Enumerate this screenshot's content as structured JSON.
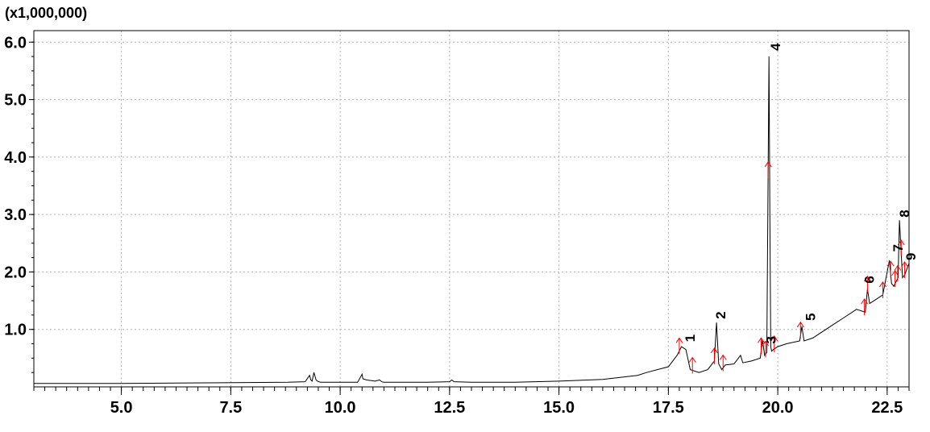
{
  "chart_data": {
    "type": "line",
    "y_multiplier_label": "(x1,000,000)",
    "xlim": [
      3.0,
      23.0
    ],
    "ylim": [
      0,
      6.2
    ],
    "x_ticks": [
      {
        "value": 5.0,
        "label": "5.0"
      },
      {
        "value": 7.5,
        "label": "7.5"
      },
      {
        "value": 10.0,
        "label": "10.0"
      },
      {
        "value": 12.5,
        "label": "12.5"
      },
      {
        "value": 15.0,
        "label": "15.0"
      },
      {
        "value": 17.5,
        "label": "17.5"
      },
      {
        "value": 20.0,
        "label": "20.0"
      },
      {
        "value": 22.5,
        "label": "22.5"
      }
    ],
    "y_ticks": [
      {
        "value": 1.0,
        "label": "1.0"
      },
      {
        "value": 2.0,
        "label": "2.0"
      },
      {
        "value": 3.0,
        "label": "3.0"
      },
      {
        "value": 4.0,
        "label": "4.0"
      },
      {
        "value": 5.0,
        "label": "5.0"
      },
      {
        "value": 6.0,
        "label": "6.0"
      }
    ],
    "grid": true,
    "series": [
      {
        "x": [
          3.0,
          5.0,
          7.0,
          8.8,
          9.2,
          9.3,
          9.33,
          9.36,
          9.4,
          9.45,
          9.48,
          9.55,
          9.7,
          10.4,
          10.5,
          10.52,
          10.6,
          10.8,
          10.9,
          10.95,
          11.0,
          12.0,
          12.5,
          12.55,
          12.6,
          13.0,
          14.0,
          15.0,
          16.0,
          16.8,
          17.0,
          17.5,
          17.7,
          17.8,
          17.9,
          18.0,
          18.2,
          18.4,
          18.55,
          18.6,
          18.65,
          18.72,
          18.8,
          19.0,
          19.1,
          19.15,
          19.2,
          19.4,
          19.6,
          19.65,
          19.7,
          19.75,
          19.8,
          19.82,
          19.84,
          19.86,
          19.9,
          20.0,
          20.2,
          20.5,
          20.55,
          20.6,
          20.8,
          21.0,
          21.2,
          21.5,
          21.8,
          22.0,
          22.05,
          22.1,
          22.2,
          22.4,
          22.55,
          22.6,
          22.65,
          22.75,
          22.78,
          22.85,
          22.9,
          23.0
        ],
        "y": [
          0.06,
          0.06,
          0.07,
          0.08,
          0.09,
          0.2,
          0.12,
          0.1,
          0.25,
          0.12,
          0.1,
          0.08,
          0.08,
          0.08,
          0.22,
          0.14,
          0.12,
          0.1,
          0.12,
          0.09,
          0.08,
          0.08,
          0.09,
          0.12,
          0.09,
          0.08,
          0.08,
          0.1,
          0.13,
          0.2,
          0.25,
          0.35,
          0.55,
          0.7,
          0.65,
          0.3,
          0.25,
          0.3,
          0.45,
          1.12,
          0.4,
          0.3,
          0.38,
          0.4,
          0.5,
          0.55,
          0.42,
          0.45,
          0.5,
          0.82,
          0.55,
          0.6,
          5.75,
          3.0,
          0.7,
          0.62,
          0.65,
          0.7,
          0.75,
          0.8,
          1.05,
          0.8,
          0.85,
          0.95,
          1.05,
          1.2,
          1.35,
          1.3,
          1.7,
          1.45,
          1.5,
          1.6,
          2.2,
          1.8,
          1.75,
          1.9,
          2.9,
          1.9,
          1.95,
          2.15
        ]
      }
    ],
    "peak_labels": [
      {
        "label": "1",
        "x": 18.1,
        "y": 0.78
      },
      {
        "label": "2",
        "x": 18.8,
        "y": 1.18
      },
      {
        "label": "3",
        "x": 19.95,
        "y": 0.75
      },
      {
        "label": "4",
        "x": 20.05,
        "y": 5.85
      },
      {
        "label": "5",
        "x": 20.85,
        "y": 1.15
      },
      {
        "label": "6",
        "x": 22.2,
        "y": 1.8
      },
      {
        "label": "7",
        "x": 22.85,
        "y": 2.35
      },
      {
        "label": "8",
        "x": 23.0,
        "y": 2.95
      },
      {
        "label": "9",
        "x": 23.15,
        "y": 2.2
      }
    ],
    "integration_markers_x": [
      17.75,
      18.05,
      18.55,
      18.75,
      19.62,
      19.72,
      19.78,
      19.92,
      20.52,
      21.98,
      22.05,
      22.4,
      22.58,
      22.68,
      22.74,
      22.82,
      22.9
    ],
    "colors": {
      "signal": "#000000",
      "markers": "#ff0000",
      "grid": "#b0b0b0",
      "frame": "#000000"
    }
  }
}
